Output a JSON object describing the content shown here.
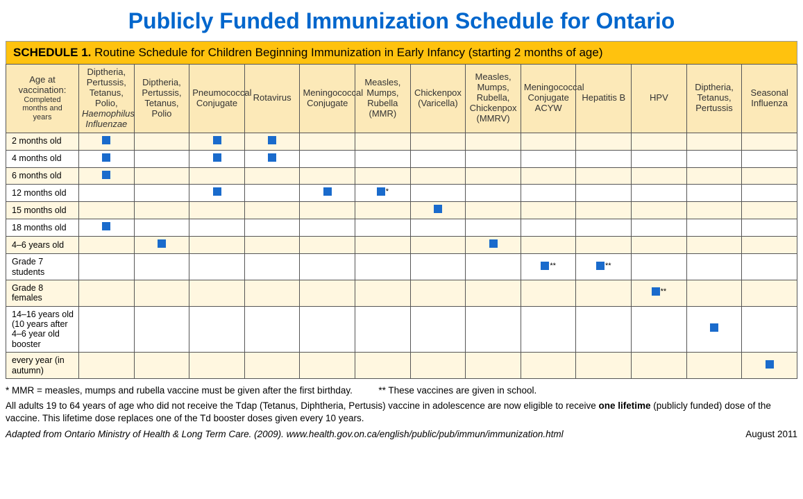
{
  "title": "Publicly Funded Immunization Schedule for Ontario",
  "bannerBold": "SCHEDULE 1.",
  "bannerRest": " Routine Schedule for Children Beginning Immunization in Early Infancy (starting 2 months of age)",
  "colors": {
    "title": "#0066cc",
    "banner_bg": "#ffc20e",
    "header_bg": "#fce9b8",
    "tint_bg": "#fff7e0",
    "marker": "#1a6bcc",
    "border": "#555555"
  },
  "ageHeader": {
    "l1": "Age at",
    "l2": "vaccination:",
    "l3": "Completed",
    "l4": "months and",
    "l5": "years"
  },
  "vaccines": [
    {
      "key": "dtap_hib",
      "label": "Diptheria, Pertussis, Tetanus, Polio, <em>Haemophilus Influenzae</em>"
    },
    {
      "key": "dtap",
      "label": "Diptheria, Pertussis, Tetanus, Polio"
    },
    {
      "key": "pneu",
      "label": "Pneumococcal Conjugate"
    },
    {
      "key": "rota",
      "label": "Rotavirus"
    },
    {
      "key": "menc",
      "label": "Meningococcal Conjugate"
    },
    {
      "key": "mmr",
      "label": "Measles, Mumps, Rubella (MMR)"
    },
    {
      "key": "var",
      "label": "Chickenpox (Varicella)"
    },
    {
      "key": "mmrv",
      "label": "Measles, Mumps, Rubella, Chickenpox (MMRV)"
    },
    {
      "key": "menacyw",
      "label": "Meningococcal Conjugate ACYW"
    },
    {
      "key": "hepb",
      "label": "Hepatitis B"
    },
    {
      "key": "hpv",
      "label": "HPV"
    },
    {
      "key": "tdap",
      "label": "Diptheria, Tetanus, Pertussis"
    },
    {
      "key": "flu",
      "label": "Seasonal Influenza"
    }
  ],
  "rows": [
    {
      "age": "2 months old",
      "marks": {
        "dtap_hib": "",
        "pneu": "",
        "rota": ""
      }
    },
    {
      "age": "4 months old",
      "marks": {
        "dtap_hib": "",
        "pneu": "",
        "rota": ""
      }
    },
    {
      "age": "6 months old",
      "marks": {
        "dtap_hib": ""
      }
    },
    {
      "age": "12 months old",
      "marks": {
        "pneu": "",
        "menc": "",
        "mmr": "*"
      }
    },
    {
      "age": "15 months old",
      "marks": {
        "var": ""
      }
    },
    {
      "age": "18 months old",
      "marks": {
        "dtap_hib": ""
      }
    },
    {
      "age": "4–6 years old",
      "marks": {
        "dtap": "",
        "mmrv": ""
      }
    },
    {
      "age": "Grade 7 students",
      "marks": {
        "menacyw": "**",
        "hepb": "**"
      }
    },
    {
      "age": "Grade 8 females",
      "marks": {
        "hpv": "**"
      }
    },
    {
      "age": "14–16 years old (10 years after 4–6 year old booster",
      "marks": {
        "tdap": ""
      }
    },
    {
      "age": "every year (in autumn)",
      "marks": {
        "flu": ""
      }
    }
  ],
  "footnote1a": "*   MMR = measles, mumps and rubella vaccine must be given after the first birthday.",
  "footnote1b": "** These vaccines are given in school.",
  "footnote2a": "All adults 19 to 64 years of age who did not receive the Tdap (Tetanus, Diphtheria, Pertusis) vaccine in adolescence are now eligible to receive ",
  "footnote2bold": "one lifetime",
  "footnote2b": " (publicly funded) dose of the vaccine. This lifetime dose replaces one of the Td booster doses given every 10 years.",
  "source": "Adapted from Ontario Ministry of Health & Long Term Care. (2009). www.health.gov.on.ca/english/public/pub/immun/immunization.html",
  "date": "August 2011"
}
